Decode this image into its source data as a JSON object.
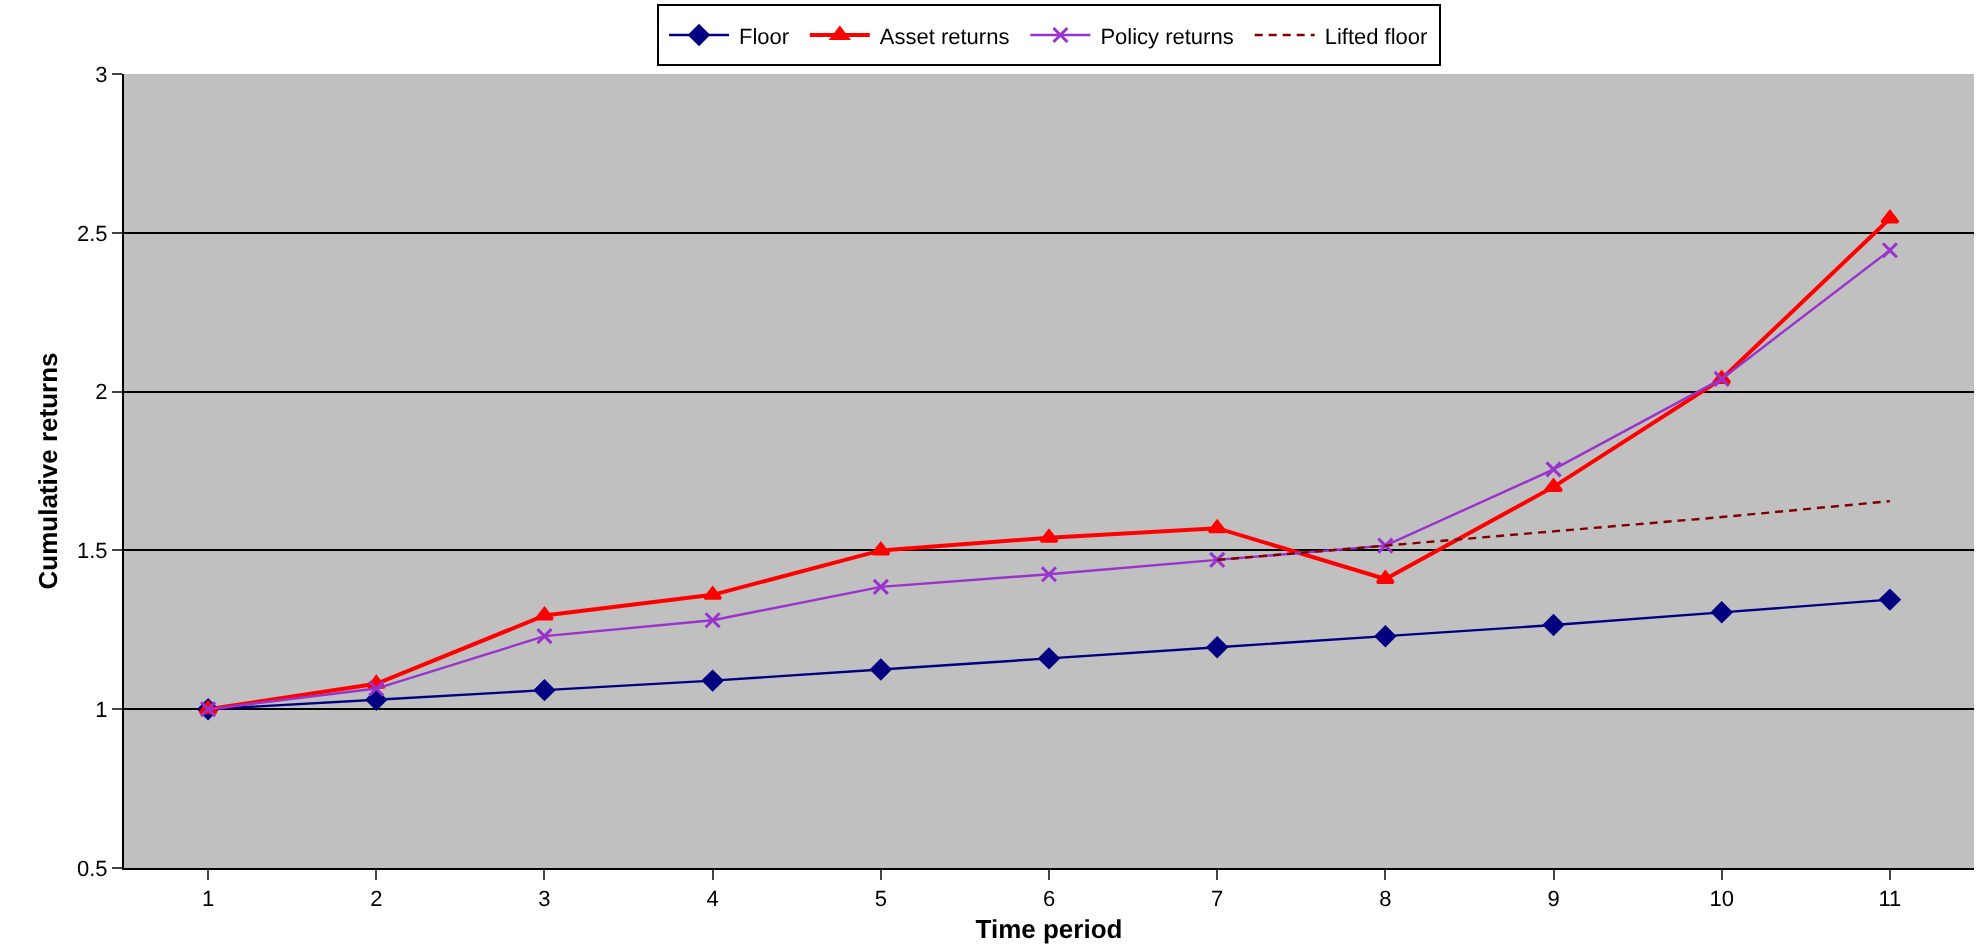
{
  "chart_data": {
    "type": "line",
    "xlabel": "Time period",
    "ylabel": "Cumulative returns",
    "categories": [
      "1",
      "2",
      "3",
      "4",
      "5",
      "6",
      "7",
      "8",
      "9",
      "10",
      "11"
    ],
    "series": [
      {
        "name": "Floor",
        "color": "#000080",
        "marker": "diamond",
        "line_style": "solid",
        "values": [
          1,
          1.03,
          1.06,
          1.09,
          1.125,
          1.16,
          1.195,
          1.23,
          1.265,
          1.305,
          1.345
        ]
      },
      {
        "name": "Asset returns",
        "color": "#ff0000",
        "marker": "triangle",
        "line_style": "solid",
        "values": [
          1,
          1.08,
          1.295,
          1.36,
          1.5,
          1.54,
          1.57,
          1.41,
          1.7,
          2.04,
          2.545
        ]
      },
      {
        "name": "Policy returns",
        "color": "#9933cc",
        "marker": "cross",
        "line_style": "solid",
        "values": [
          1,
          1.065,
          1.23,
          1.28,
          1.385,
          1.425,
          1.47,
          1.515,
          1.755,
          2.04,
          2.445
        ]
      },
      {
        "name": "Lifted floor",
        "color": "#800000",
        "marker": "none",
        "line_style": "dashed",
        "values": [
          null,
          null,
          null,
          null,
          null,
          null,
          1.47,
          1.515,
          1.56,
          1.605,
          1.655
        ]
      }
    ],
    "ylim": [
      0.5,
      3
    ],
    "yticks": [
      0.5,
      1,
      1.5,
      2,
      2.5,
      3
    ],
    "grid": "y",
    "legend": "top"
  }
}
